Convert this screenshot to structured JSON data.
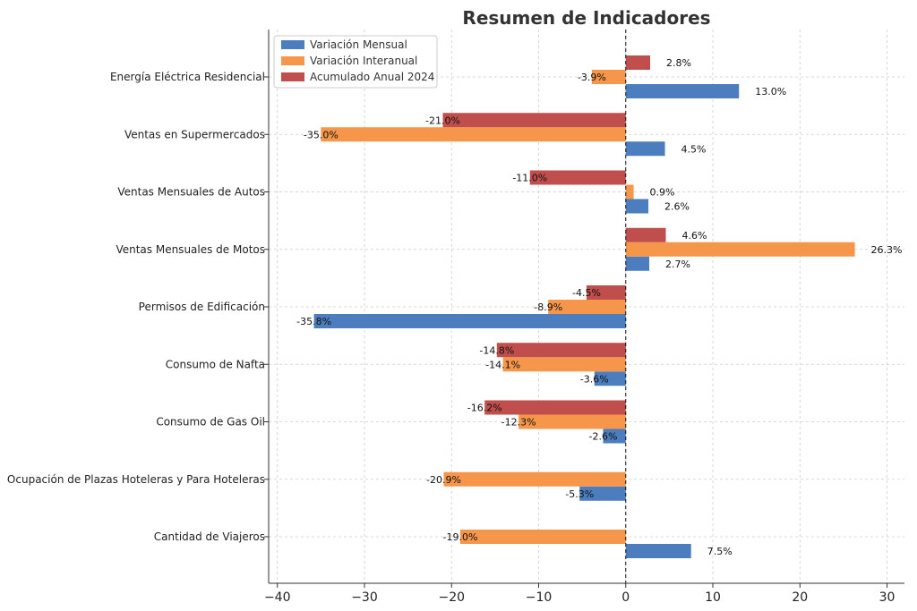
{
  "chart_data": {
    "type": "bar",
    "orientation": "horizontal",
    "title": "Resumen de Indicadores",
    "xlabel": "",
    "ylabel": "",
    "xlim": [
      -41,
      32
    ],
    "xticks": [
      -40,
      -30,
      -20,
      -10,
      0,
      10,
      20,
      30
    ],
    "xtick_labels": [
      "−40",
      "−30",
      "−20",
      "−10",
      "0",
      "10",
      "20",
      "30"
    ],
    "grid": true,
    "legend_position": "top-left",
    "categories": [
      "Energía Eléctrica Residencial",
      "Ventas en Supermercados",
      "Ventas Mensuales de Autos",
      "Ventas Mensuales de Motos",
      "Permisos de Edificación",
      "Consumo de Nafta",
      "Consumo de Gas Oil",
      "Ocupación de Plazas Hoteleras y Para Hoteleras",
      "Cantidad de Viajeros"
    ],
    "series": [
      {
        "name": "Variación Mensual",
        "color": "#4c7ebf",
        "values": [
          13.0,
          4.5,
          2.6,
          2.7,
          -35.8,
          -3.6,
          -2.6,
          -5.3,
          7.5
        ],
        "labels": [
          "13.0%",
          "4.5%",
          "2.6%",
          "2.7%",
          "-35.8%",
          "-3.6%",
          "-2.6%",
          "-5.3%",
          "7.5%"
        ]
      },
      {
        "name": "Variación Interanual",
        "color": "#f5964a",
        "values": [
          -3.9,
          -35.0,
          0.9,
          26.3,
          -8.9,
          -14.1,
          -12.3,
          -20.9,
          -19.0
        ],
        "labels": [
          "-3.9%",
          "-35.0%",
          "0.9%",
          "26.3%",
          "-8.9%",
          "-14.1%",
          "-12.3%",
          "-20.9%",
          "-19.0%"
        ]
      },
      {
        "name": "Acumulado Anual 2024",
        "color": "#c04e4c",
        "values": [
          2.8,
          -21.0,
          -11.0,
          4.6,
          -4.5,
          -14.8,
          -16.2,
          null,
          null
        ],
        "labels": [
          "2.8%",
          "-21.0%",
          "-11.0%",
          "4.6%",
          "-4.5%",
          "-14.8%",
          "-16.2%",
          null,
          null
        ]
      }
    ]
  }
}
